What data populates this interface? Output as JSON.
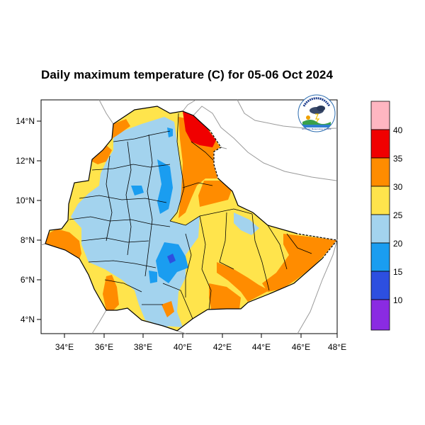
{
  "title": "Daily maximum temperature (C) for 05-06 Oct 2024",
  "lat_ticks": [
    "14°N",
    "12°N",
    "10°N",
    "8°N",
    "6°N",
    "4°N"
  ],
  "lon_ticks": [
    "34°E",
    "36°E",
    "38°E",
    "40°E",
    "42°E",
    "44°E",
    "46°E",
    "48°E"
  ],
  "colorbar": {
    "labels": [
      "40",
      "35",
      "30",
      "25",
      "20",
      "15",
      "10"
    ],
    "bins": [
      {
        "range": "> 40",
        "color": "#ffb6c1"
      },
      {
        "range": "35-40",
        "color": "#f00000"
      },
      {
        "range": "30-35",
        "color": "#ff8c00"
      },
      {
        "range": "25-30",
        "color": "#ffe44c"
      },
      {
        "range": "20-25",
        "color": "#a3d3ee"
      },
      {
        "range": "15-20",
        "color": "#1a9df0"
      },
      {
        "range": "10-15",
        "color": "#2d4fe0"
      },
      {
        "range": "< 10",
        "color": "#8a2be2"
      }
    ]
  },
  "logo": {
    "text": "Ethiopian Meteorology Institute",
    "icon": "meteorology-logo-icon"
  },
  "map_extent": {
    "lon": [
      33,
      48
    ],
    "lat": [
      3.2,
      15
    ]
  }
}
